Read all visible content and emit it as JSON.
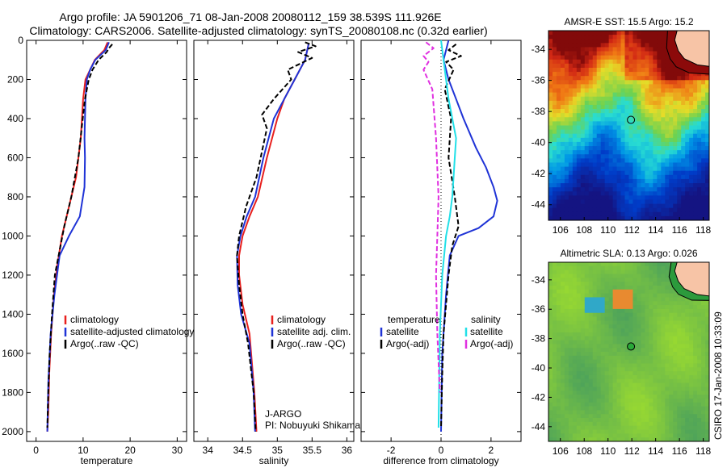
{
  "title": {
    "line1": "Argo profile: JA 5901206_71 08-Jan-2008 20080112_159 38.539S 111.926E",
    "line2": "Climatology: CARS2006. Satellite-adjusted climatology: synTS_20080108.nc (0.32d earlier)"
  },
  "colors": {
    "red": "#e8201e",
    "blue": "#1f33d6",
    "black": "#000000",
    "cyan": "#22e0e8",
    "magenta": "#e030e0",
    "land": "#f7c4a6"
  },
  "chart_data": [
    {
      "type": "line",
      "xlabel": "temperature",
      "ylabel": "",
      "xlim": [
        -2,
        32
      ],
      "ylim": [
        2050,
        0
      ],
      "xticks": [
        0,
        10,
        20,
        30
      ],
      "yticks": [
        0,
        200,
        400,
        600,
        800,
        1000,
        1200,
        1400,
        1600,
        1800,
        2000
      ],
      "legend": [
        "climatology",
        "satellite-adjusted climatology",
        "Argo(..raw -QC)"
      ],
      "series": [
        {
          "name": "climatology",
          "color": "red",
          "x": [
            15.2,
            14.5,
            12.5,
            11.5,
            10.5,
            10.0,
            9.5,
            8.5,
            7.0,
            5.5,
            4.5,
            3.8,
            3.2,
            2.8,
            2.6,
            2.4
          ],
          "y": [
            10,
            50,
            100,
            150,
            200,
            300,
            500,
            700,
            850,
            1000,
            1150,
            1300,
            1500,
            1700,
            1900,
            2000
          ]
        },
        {
          "name": "satellite-adjusted climatology",
          "color": "blue",
          "x": [
            15.5,
            14.8,
            12.6,
            11.5,
            10.8,
            10.5,
            10.3,
            10.4,
            10.3,
            9.3,
            7.0,
            5.0,
            3.9,
            3.1,
            2.6,
            2.4
          ],
          "y": [
            10,
            50,
            100,
            150,
            200,
            300,
            500,
            600,
            750,
            900,
            1000,
            1100,
            1300,
            1500,
            1750,
            2000
          ]
        },
        {
          "name": "Argo(..raw -QC)",
          "color": "black",
          "dash": "6,3",
          "x": [
            16.2,
            15.5,
            15.0,
            13.3,
            12.0,
            11.2,
            10.4,
            9.7,
            9.0,
            7.5,
            6.0,
            4.8,
            4.0,
            3.4,
            2.9,
            2.6,
            2.4
          ],
          "y": [
            20,
            40,
            60,
            100,
            150,
            200,
            300,
            450,
            600,
            800,
            950,
            1100,
            1200,
            1400,
            1600,
            1800,
            1980
          ]
        }
      ]
    },
    {
      "type": "line",
      "xlabel": "salinity",
      "ylabel": "",
      "xlim": [
        33.8,
        36.1
      ],
      "ylim": [
        2050,
        0
      ],
      "xticks": [
        34,
        34.5,
        35,
        35.5,
        36
      ],
      "xticklabels": [
        "34",
        "34.5",
        "35",
        "35.5",
        "36"
      ],
      "yticks": [
        0,
        200,
        400,
        600,
        800,
        1000,
        1200,
        1400,
        1600,
        1800,
        2000
      ],
      "legend": [
        "climatology",
        "satellite adj. clim.",
        "Argo(..raw -QC)"
      ],
      "annotation": [
        "J-ARGO",
        "PI: Nobuyuki Shikama"
      ],
      "series": [
        {
          "name": "climatology",
          "color": "red",
          "x": [
            35.45,
            35.4,
            35.25,
            35.1,
            35.0,
            34.85,
            34.72,
            34.6,
            34.5,
            34.45,
            34.45,
            34.5,
            34.6,
            34.67,
            34.7
          ],
          "y": [
            20,
            100,
            200,
            300,
            400,
            600,
            800,
            900,
            1000,
            1100,
            1200,
            1350,
            1500,
            1800,
            2000
          ]
        },
        {
          "name": "satellite adj. clim.",
          "color": "blue",
          "x": [
            35.45,
            35.4,
            35.25,
            35.1,
            34.95,
            34.8,
            34.68,
            34.56,
            34.47,
            34.42,
            34.43,
            34.48,
            34.6,
            34.66,
            34.68
          ],
          "y": [
            20,
            100,
            200,
            300,
            400,
            600,
            800,
            900,
            1000,
            1100,
            1250,
            1400,
            1550,
            1800,
            2000
          ]
        },
        {
          "name": "Argo(..raw -QC)",
          "color": "black",
          "dash": "6,3",
          "x": [
            35.4,
            35.55,
            35.3,
            35.5,
            35.15,
            35.2,
            34.95,
            34.78,
            34.85,
            34.7,
            34.55,
            34.45,
            34.42,
            34.45,
            34.5,
            34.58,
            34.66,
            34.69
          ],
          "y": [
            10,
            30,
            60,
            90,
            150,
            200,
            300,
            380,
            450,
            700,
            850,
            1000,
            1100,
            1250,
            1400,
            1550,
            1800,
            2000
          ]
        }
      ]
    },
    {
      "type": "line",
      "xlabel": "difference from climatology",
      "ylabel": "",
      "xlim": [
        -3.2,
        3.2
      ],
      "ylim": [
        2050,
        0
      ],
      "xticks": [
        -2,
        0,
        2
      ],
      "yticks": [
        0,
        200,
        400,
        600,
        800,
        1000,
        1200,
        1400,
        1600,
        1800,
        2000
      ],
      "legend_left": [
        "temperature",
        "satellite",
        "Argo(-adj)"
      ],
      "legend_right": [
        "salinity",
        "satellite",
        "Argo(-adj)"
      ],
      "series": [
        {
          "name": "temperature satellite",
          "color": "blue",
          "x": [
            0.3,
            0.1,
            0.3,
            0.6,
            0.9,
            1.4,
            1.8,
            2.1,
            2.25,
            2.1,
            1.5,
            0.7,
            0.35,
            0.2,
            0.05,
            0.0
          ],
          "y": [
            0,
            100,
            200,
            300,
            400,
            550,
            650,
            750,
            820,
            900,
            960,
            1000,
            1100,
            1300,
            1600,
            2000
          ]
        },
        {
          "name": "temperature Argo(-adj)",
          "color": "black",
          "dash": "6,3",
          "x": [
            0.6,
            0.3,
            0.8,
            0.2,
            0.5,
            0.15,
            0.4,
            0.3,
            0.55,
            0.7,
            0.45,
            0.3,
            0.2,
            0.1,
            0.05,
            0.0
          ],
          "y": [
            20,
            50,
            80,
            110,
            150,
            250,
            400,
            600,
            800,
            950,
            1050,
            1200,
            1350,
            1500,
            1700,
            1980
          ]
        },
        {
          "name": "salinity satellite",
          "color": "cyan",
          "x": [
            0.0,
            0.1,
            0.3,
            0.6,
            0.55,
            0.5,
            0.45,
            0.35,
            0.2,
            0.05,
            -0.05,
            -0.1
          ],
          "y": [
            0,
            100,
            300,
            500,
            600,
            700,
            800,
            900,
            1000,
            1200,
            1500,
            1980
          ]
        },
        {
          "name": "salinity Argo(-adj)",
          "color": "magenta",
          "dash": "6,3",
          "x": [
            -0.6,
            -0.3,
            -0.7,
            -0.5,
            -0.7,
            -0.35,
            -0.2,
            -0.1,
            -0.15,
            -0.2,
            -0.15,
            -0.05
          ],
          "y": [
            10,
            40,
            80,
            110,
            150,
            250,
            500,
            800,
            1000,
            1200,
            1500,
            1800
          ]
        }
      ]
    },
    {
      "type": "heatmap",
      "title": "AMSR-E SST: 15.5 Argo: 15.2",
      "xlim": [
        105,
        118.5
      ],
      "ylim": [
        -45,
        -32.8
      ],
      "xticks": [
        106,
        108,
        110,
        112,
        114,
        116,
        118
      ],
      "yticks": [
        -34,
        -36,
        -38,
        -40,
        -42,
        -44
      ],
      "marker": {
        "lon": 111.926,
        "lat": -38.539
      }
    },
    {
      "type": "heatmap",
      "title": "Altimetric SLA: 0.13 Argo: 0.026",
      "xlim": [
        105,
        118.5
      ],
      "ylim": [
        -45,
        -32.8
      ],
      "xticks": [
        106,
        108,
        110,
        112,
        114,
        116,
        118
      ],
      "yticks": [
        -34,
        -36,
        -38,
        -40,
        -42,
        -44
      ],
      "marker": {
        "lon": 111.926,
        "lat": -38.539
      }
    }
  ],
  "stamp": "CSIRO 17-Jan-2008 10:33:09"
}
